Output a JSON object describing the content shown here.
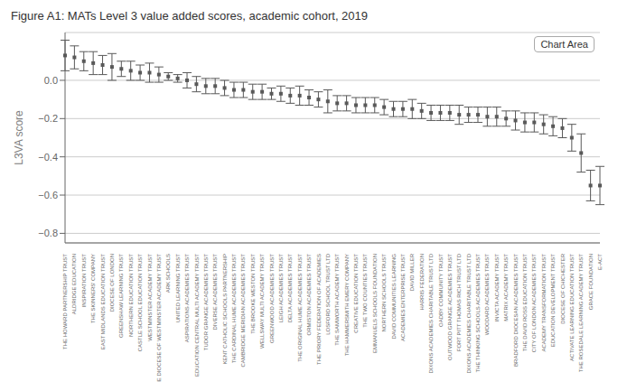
{
  "chart_data": {
    "type": "errorbar",
    "title": "Figure A1: MATs Level 3 value added scores, academic cohort, 2019",
    "ylabel": "L3VA score",
    "annotation": "Chart Area",
    "categories": [
      "THE HOWARD PARTNERSHIP TRUST",
      "ALDRIDGE EDUCATION",
      "INSPIRATION TRUST",
      "THE SKINNERS' COMPANY",
      "EAST MIDLANDS EDUCATION TRUST",
      "DIOCESE OF LONDON",
      "GREENSHAW LEARNING TRUST",
      "NORTHERN EDUCATION TRUST",
      "CASTLE SCHOOL EDUCATION TRUST",
      "WESTMINSTER ACADEMY TRUST",
      "THE DIOCESE OF WESTMINSTER ACADEMY TRUST",
      "ARK SCHOOLS",
      "UNITED LEARNING TRUST",
      "ASPIRATIONS ACADEMIES TRUST",
      "EDUCATION CENTRAL MULTI ACADEMY TRUST",
      "TUDOR GRANGE ACADEMIES TRUST",
      "DIVERSE ACADEMIES TRUST",
      "KENT CATHOLIC SCHOOLS PARTNERSHIP",
      "THE CARDINAL HUME ACADEMIES TRUST",
      "CAMBRIDGE MERIDIAN ACADEMIES TRUST",
      "THE BROOKE WESTON TRUST",
      "WELLSWAY MULTI ACADEMY TRUST",
      "GREENWOOD ACADEMIES TRUST",
      "LEIGH ACADEMIES TRUST",
      "DELTA ACADEMIES TRUST",
      "THE ORIGINAL HUME ACADEMIES TRUST",
      "ORMISTON ACADEMIES TRUST",
      "THE PRIORY FEDERATION OF ACADEMIES",
      "LOSFORD SCHOOL TRUST LTD",
      "THE SAMWORTH ACADEMY TRUST",
      "THE HAMMERSMITH EMERY COMPANY",
      "CREATIVE EDUCATION TRUST",
      "THE TWO COUNTIES TRUST",
      "EMMANUELS SCHOOLS FOUNDATION",
      "NORTHERN SCHOOLS TRUST",
      "DAVID COMMUNITIES LEARNING",
      "ACADEMIES ENTERPRISE TRUST",
      "DAVID MILLER",
      "HARRIS FEDERATION",
      "DIXONS ACADEMIES CHARITABLE TRUST LTD",
      "OADBY COMMUNITY TRUST",
      "OUTWOOD GRANGE ACADEMIES TRUST",
      "FORT PITT THOMAS RICH TRUST LTD",
      "DIXONS ACADEMIES CHARITABLE TRUST LTD",
      "THE THINKING SCHOOLS ACADEMIES TRUST",
      "WOODARD ACADEMIES TRUST",
      "INVICTA ACADEMY TRUST",
      "MATRIX ACADEMY TRUST",
      "BRADFORD DIOCESAN ACADEMIES TRUST",
      "THE DAVID ROSS EDUCATION TRUST",
      "CITY OF LONDON ACADEMIES TRUST",
      "ACADEMY TRANSFORMATION TRUST",
      "EDUCATION DEVELOPMENT TRUST",
      "DIOCESE OF CHICHESTER",
      "ACTIVATE LEARNING EDUCATION TRUST",
      "THE ROSEDALE LEARNING ACADEMY TRUST",
      "GRACE FOUNDATION",
      "E-ACT"
    ],
    "values": [
      0.13,
      0.12,
      0.1,
      0.09,
      0.08,
      0.07,
      0.06,
      0.05,
      0.04,
      0.04,
      0.03,
      0.02,
      0.01,
      0.0,
      -0.02,
      -0.03,
      -0.03,
      -0.04,
      -0.05,
      -0.05,
      -0.06,
      -0.06,
      -0.07,
      -0.07,
      -0.08,
      -0.08,
      -0.09,
      -0.1,
      -0.11,
      -0.12,
      -0.12,
      -0.13,
      -0.13,
      -0.13,
      -0.14,
      -0.15,
      -0.15,
      -0.15,
      -0.16,
      -0.17,
      -0.17,
      -0.17,
      -0.18,
      -0.18,
      -0.18,
      -0.19,
      -0.19,
      -0.2,
      -0.21,
      -0.22,
      -0.22,
      -0.23,
      -0.24,
      -0.25,
      -0.3,
      -0.38,
      -0.55,
      -0.55
    ],
    "lower_errors": [
      0.08,
      0.06,
      0.05,
      0.06,
      0.05,
      0.07,
      0.04,
      0.05,
      0.04,
      0.05,
      0.04,
      0.02,
      0.02,
      0.04,
      0.04,
      0.04,
      0.04,
      0.04,
      0.04,
      0.04,
      0.04,
      0.04,
      0.03,
      0.04,
      0.04,
      0.05,
      0.04,
      0.04,
      0.06,
      0.04,
      0.04,
      0.04,
      0.04,
      0.04,
      0.04,
      0.04,
      0.04,
      0.05,
      0.04,
      0.04,
      0.04,
      0.04,
      0.05,
      0.04,
      0.04,
      0.05,
      0.05,
      0.04,
      0.05,
      0.05,
      0.05,
      0.05,
      0.05,
      0.05,
      0.07,
      0.1,
      0.08,
      0.1
    ],
    "upper_errors": [
      0.08,
      0.06,
      0.05,
      0.06,
      0.05,
      0.07,
      0.04,
      0.05,
      0.04,
      0.05,
      0.04,
      0.02,
      0.02,
      0.04,
      0.04,
      0.04,
      0.04,
      0.04,
      0.04,
      0.04,
      0.04,
      0.04,
      0.03,
      0.04,
      0.04,
      0.05,
      0.04,
      0.04,
      0.06,
      0.04,
      0.04,
      0.04,
      0.04,
      0.04,
      0.04,
      0.04,
      0.04,
      0.05,
      0.04,
      0.04,
      0.04,
      0.04,
      0.05,
      0.04,
      0.04,
      0.05,
      0.05,
      0.04,
      0.05,
      0.05,
      0.05,
      0.05,
      0.05,
      0.05,
      0.07,
      0.1,
      0.08,
      0.1
    ],
    "color": "#595959",
    "ylim": [
      -0.85,
      0.25
    ],
    "yticks": [
      {
        "value": 0.0,
        "label": "0.0"
      },
      {
        "value": -0.2,
        "label": "−0.2"
      },
      {
        "value": -0.4,
        "label": "−0.4"
      },
      {
        "value": -0.6,
        "label": "−0.6"
      },
      {
        "value": -0.8,
        "label": "−0.8"
      }
    ],
    "grid": true
  }
}
